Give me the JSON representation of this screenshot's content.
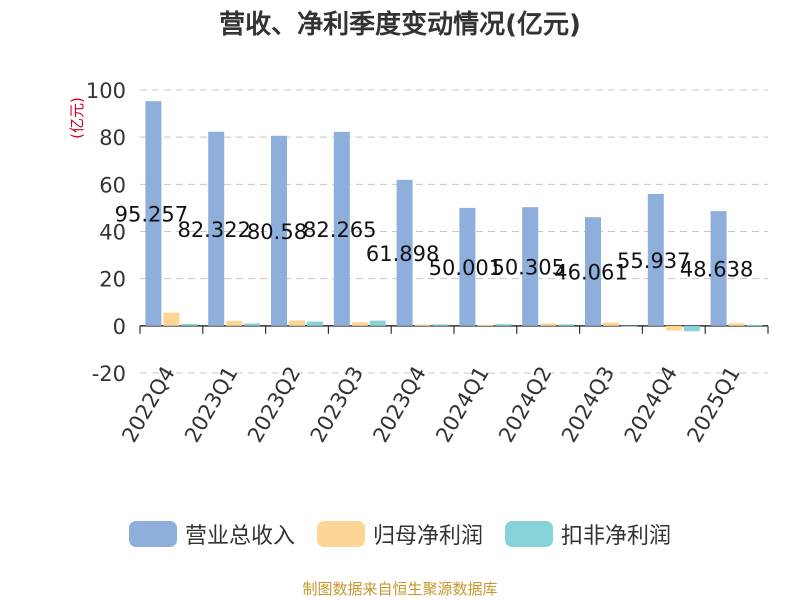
{
  "chart_data": {
    "type": "bar",
    "title": "营收、净利季度变动情况(亿元)",
    "ylabel": "(亿元)",
    "ylim": [
      -20,
      100
    ],
    "yticks": [
      -20,
      0,
      20,
      40,
      60,
      80,
      100
    ],
    "grid": true,
    "legend_position": "bottom",
    "categories": [
      "2022Q4",
      "2023Q1",
      "2023Q2",
      "2023Q3",
      "2023Q4",
      "2024Q1",
      "2024Q2",
      "2024Q3",
      "2024Q4",
      "2025Q1"
    ],
    "series": [
      {
        "name": "营业总收入",
        "color": "#8eaedb",
        "values": [
          95.257,
          82.322,
          80.58,
          82.265,
          61.898,
          50.001,
          50.305,
          46.061,
          55.937,
          48.638
        ],
        "labels": [
          "95.257",
          "82.322",
          "80.58",
          "82.265",
          "61.898",
          "50.001",
          "50.305",
          "46.061",
          "55.937",
          "48.638"
        ]
      },
      {
        "name": "归母净利润",
        "color": "#fdd595",
        "values": [
          5.6,
          2.1,
          2.3,
          1.5,
          0.5,
          0.4,
          1.0,
          1.4,
          -2.0,
          1.1
        ]
      },
      {
        "name": "扣非净利润",
        "color": "#86d3d8",
        "values": [
          0.8,
          1.0,
          1.8,
          2.2,
          0.6,
          0.7,
          0.6,
          -0.1,
          -2.3,
          0.4
        ]
      }
    ]
  },
  "footer": {
    "source": "制图数据来自恒生聚源数据库"
  }
}
